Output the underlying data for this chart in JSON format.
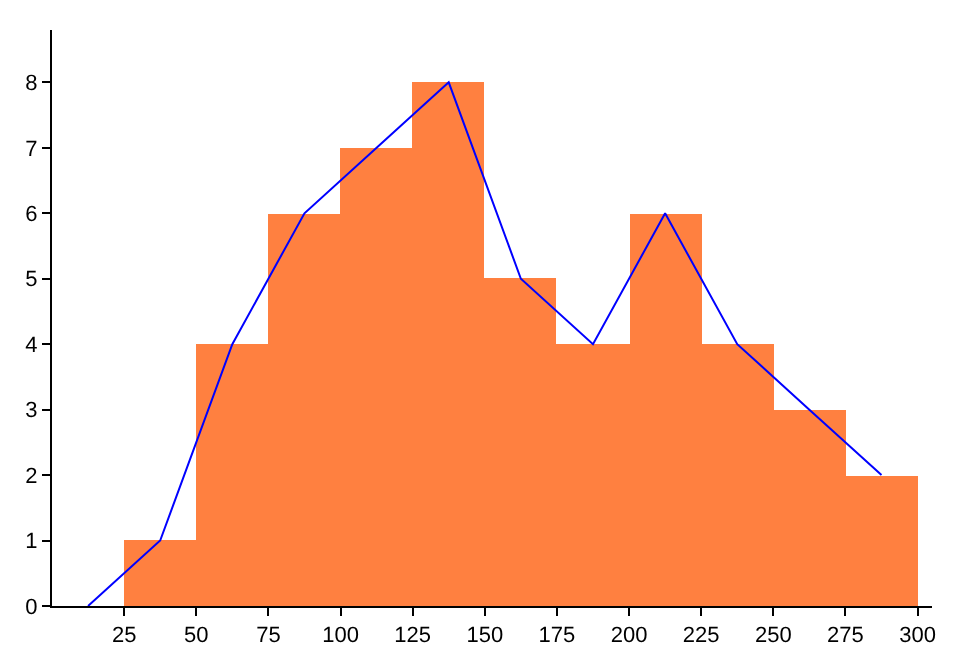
{
  "chart_data": {
    "type": "histogram",
    "bins": [
      25,
      50,
      75,
      100,
      125,
      150,
      175,
      200,
      225,
      250,
      275,
      300
    ],
    "values": [
      1,
      4,
      6,
      7,
      8,
      5,
      4,
      6,
      4,
      3,
      2
    ],
    "color": "#ff8040",
    "series": [
      {
        "type": "line",
        "color": "#0000ff",
        "x": [
          12.5,
          37.5,
          62.5,
          87.5,
          112.5,
          137.5,
          162.5,
          187.5,
          212.5,
          237.5,
          262.5,
          287.5
        ],
        "values": [
          0,
          1,
          4,
          6,
          7,
          8,
          5,
          4,
          6,
          4,
          3,
          2
        ]
      }
    ],
    "xlim": [
      0,
      305
    ],
    "xticks": [
      25,
      50,
      75,
      100,
      125,
      150,
      175,
      200,
      225,
      250,
      275,
      300
    ],
    "ylim": [
      0,
      8.8
    ],
    "yticks": [
      0,
      1,
      2,
      3,
      4,
      5,
      6,
      7,
      8
    ],
    "marker": "none"
  }
}
